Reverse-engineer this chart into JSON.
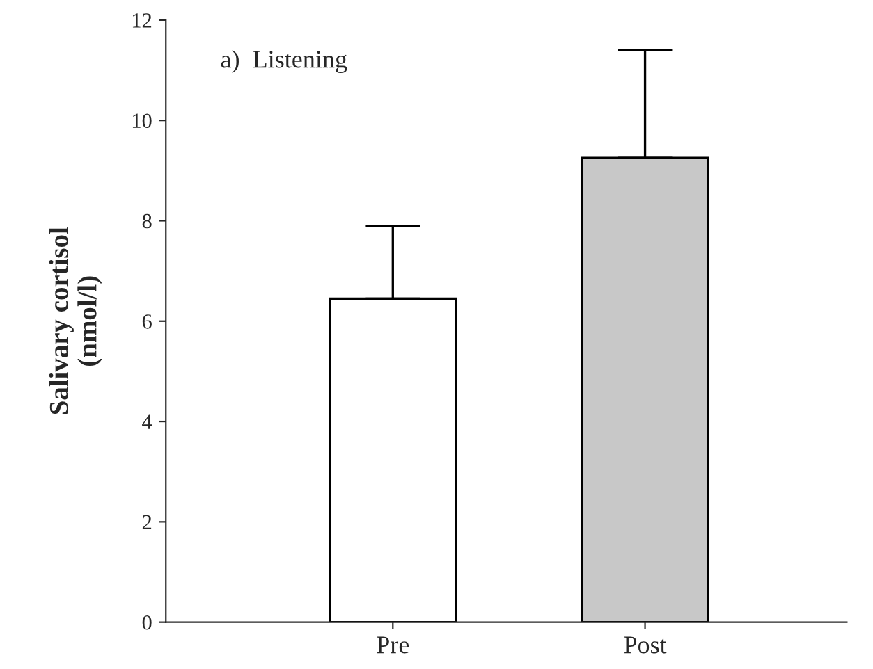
{
  "chart_data": {
    "type": "bar",
    "ylabel": "Salivary cortisol\n(nmol/l)",
    "annotations": [
      "a)  Listening"
    ],
    "categories": [
      "Pre",
      "Post"
    ],
    "values": [
      6.45,
      9.25
    ],
    "colors": [
      "#ffffff",
      "#c8c8c8"
    ],
    "errors": [
      [
        6.45,
        7.9
      ],
      [
        9.25,
        11.4
      ]
    ],
    "ylim": [
      0,
      12
    ],
    "yticks": [
      0,
      2,
      4,
      6,
      8,
      10,
      12
    ],
    "grid": false,
    "legend": false
  }
}
